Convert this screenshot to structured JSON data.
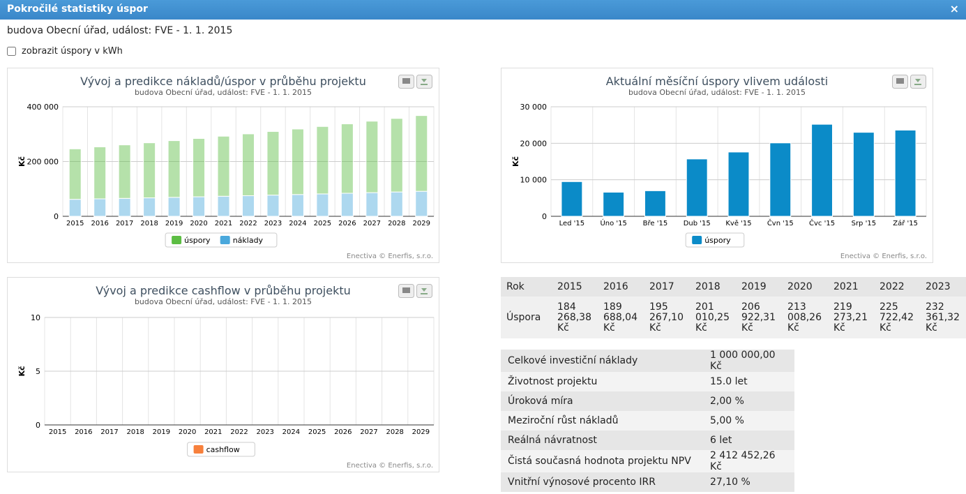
{
  "header": {
    "title": "Pokročilé statistiky úspor",
    "close": "×"
  },
  "subtitle": "budova Obecní úřad, událost: FVE - 1. 1. 2015",
  "checkbox_label": "zobrazit úspory v kWh",
  "chart_data": [
    {
      "type": "stacked_bar",
      "title": "Vývoj a predikce nákladů/úspor v průběhu projektu",
      "subtitle": "budova Obecní úřad, událost: FVE - 1. 1. 2015",
      "y_label": "Kč",
      "credits": "Enectiva © Enerfis, s.r.o.",
      "categories": [
        "2015",
        "2016",
        "2017",
        "2018",
        "2019",
        "2020",
        "2021",
        "2022",
        "2023",
        "2024",
        "2025",
        "2026",
        "2027",
        "2028",
        "2029"
      ],
      "series": [
        {
          "name": "úspory",
          "color": "#5cbd43",
          "values": [
            184268,
            189688,
            195267,
            201010,
            206922,
            213008,
            219273,
            225722,
            232361,
            239195,
            246231,
            253473,
            260928,
            268602,
            276502
          ]
        },
        {
          "name": "náklady",
          "color": "#4aa8dc",
          "values": [
            62000,
            63740,
            65520,
            67360,
            69250,
            71190,
            73180,
            75230,
            77340,
            79510,
            81740,
            84030,
            86380,
            88800,
            91290
          ]
        }
      ],
      "ylim": [
        0,
        400000
      ],
      "yticks": [
        0,
        {
          "value": 200000,
          "label": "200 000"
        },
        {
          "value": 400000,
          "label": "400 000"
        }
      ],
      "grid": true
    },
    {
      "type": "bar",
      "title": "Aktuální měsíční úspory vlivem události",
      "subtitle": "budova Obecní úřad, událost: FVE - 1. 1. 2015",
      "y_label": "Kč",
      "credits": "Enectiva © Enerfis, s.r.o.",
      "categories": [
        "Led '15",
        "Úno '15",
        "Bře '15",
        "Dub '15",
        "Kvě '15",
        "Čvn '15",
        "Čvc '15",
        "Srp '15",
        "Zář '15"
      ],
      "series": [
        {
          "name": "úspory",
          "color": "#0b8bc8",
          "values": [
            9500,
            6600,
            7000,
            15700,
            17600,
            20100,
            25200,
            23000,
            23600
          ]
        }
      ],
      "ylim": [
        0,
        30000
      ],
      "yticks": [
        0,
        {
          "value": 10000,
          "label": "10 000"
        },
        {
          "value": 20000,
          "label": "20 000"
        },
        {
          "value": 30000,
          "label": "30 000"
        }
      ],
      "grid": true
    },
    {
      "type": "line",
      "title": "Vývoj a predikce cashflow v průběhu projektu",
      "subtitle": "budova Obecní úřad, událost: FVE - 1. 1. 2015",
      "y_label": "Kč",
      "credits": "Enectiva © Enerfis, s.r.o.",
      "categories": [
        "2015",
        "2016",
        "2017",
        "2018",
        "2019",
        "2020",
        "2021",
        "2022",
        "2023",
        "2024",
        "2025",
        "2026",
        "2027",
        "2028",
        "2029"
      ],
      "series": [
        {
          "name": "cashflow",
          "color": "#f7803c",
          "values": [
            null,
            null,
            null,
            null,
            null,
            null,
            null,
            null,
            null,
            null,
            null,
            null,
            null,
            null,
            null
          ]
        }
      ],
      "ylim": [
        0,
        10
      ],
      "yticks": [
        0,
        5,
        10
      ],
      "grid": true
    }
  ],
  "year_table": {
    "header": [
      "Rok",
      "2015",
      "2016",
      "2017",
      "2018",
      "2019",
      "2020",
      "2021",
      "2022",
      "2023"
    ],
    "row": [
      "Úspora",
      "184 268,38 Kč",
      "189 688,04 Kč",
      "195 267,10 Kč",
      "201 010,25 Kč",
      "206 922,31 Kč",
      "213 008,26 Kč",
      "219 273,21 Kč",
      "225 722,42 Kč",
      "232 361,32 Kč"
    ]
  },
  "params_table": {
    "rows": [
      [
        "Celkové investiční náklady",
        "1 000 000,00 Kč"
      ],
      [
        "Životnost projektu",
        "15.0 let"
      ],
      [
        "Úroková míra",
        "2,00 %"
      ],
      [
        "Meziroční růst nákladů",
        "5,00 %"
      ],
      [
        "Reálná návratnost",
        "6 let"
      ],
      [
        "Čistá současná hodnota projektu NPV",
        "2 412 452,26 Kč"
      ],
      [
        "Vnitřní výnosové procento IRR",
        "27,10 %"
      ]
    ]
  }
}
